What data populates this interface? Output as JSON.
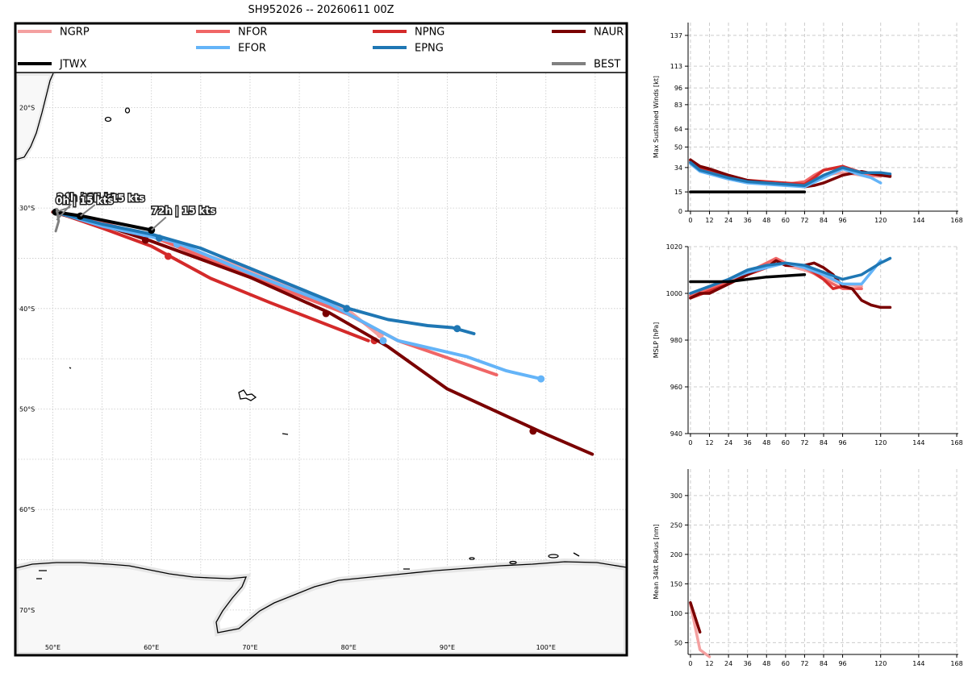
{
  "title": "SH952026 -- 20260611 00Z",
  "colors": {
    "NGRP": "#f4a0a0",
    "NFOR": "#f06666",
    "NPNG": "#d42a2a",
    "NAUR": "#7a0000",
    "EFOR": "#64b4f8",
    "EPNG": "#1f77b4",
    "JTWX": "#000000",
    "BEST": "#808080",
    "land": "#f8f8f8"
  },
  "legend": [
    {
      "key": "NGRP",
      "label": "NGRP"
    },
    {
      "key": "NFOR",
      "label": "NFOR"
    },
    {
      "key": "NPNG",
      "label": "NPNG"
    },
    {
      "key": "NAUR",
      "label": "NAUR"
    },
    {
      "key": "JTWX",
      "label": "JTWX"
    },
    {
      "key": "EFOR",
      "label": "EFOR"
    },
    {
      "key": "EPNG",
      "label": "EPNG"
    },
    {
      "key": "BEST",
      "label": "BEST"
    }
  ],
  "chart_data": [
    {
      "type": "line",
      "name": "track-map",
      "x_ticks": [
        "50°E",
        "60°E",
        "70°E",
        "80°E",
        "90°E",
        "100°E"
      ],
      "x_tick_values": [
        50,
        60,
        70,
        80,
        90,
        100
      ],
      "y_ticks": [
        "20°S",
        "30°S",
        "40°S",
        "50°S",
        "60°S",
        "70°S"
      ],
      "y_tick_values": [
        -20,
        -30,
        -40,
        -50,
        -60,
        -70
      ],
      "xlim": [
        46.2,
        108.2
      ],
      "ylim": [
        -74.5,
        -16.6
      ],
      "grid": true,
      "series": [
        {
          "key": "NGRP",
          "points": [
            [
              50.3,
              -30.4
            ],
            [
              53,
              -31
            ],
            [
              60,
              -32.8
            ],
            [
              70,
              -36.2
            ],
            [
              80,
              -40.2
            ],
            [
              83.5,
              -43
            ]
          ],
          "markers": [
            [
              83.2,
              -42.6
            ]
          ]
        },
        {
          "key": "NFOR",
          "points": [
            [
              50.3,
              -30.4
            ],
            [
              54,
              -31.2
            ],
            [
              60,
              -32.8
            ],
            [
              70,
              -36.8
            ],
            [
              80,
              -40.6
            ],
            [
              85,
              -43.2
            ],
            [
              95,
              -46.6
            ]
          ],
          "markers": []
        },
        {
          "key": "NPNG",
          "points": [
            [
              50.3,
              -30.4
            ],
            [
              55,
              -32
            ],
            [
              60,
              -33.8
            ],
            [
              66,
              -37
            ],
            [
              72,
              -39.4
            ],
            [
              82,
              -43.2
            ]
          ],
          "markers": [
            [
              61.7,
              -34.8
            ],
            [
              82.6,
              -43.2
            ]
          ]
        },
        {
          "key": "NAUR",
          "points": [
            [
              50,
              -30.4
            ],
            [
              56,
              -32
            ],
            [
              60,
              -33.3
            ],
            [
              70,
              -36.9
            ],
            [
              78,
              -40.4
            ],
            [
              84,
              -43.8
            ],
            [
              90,
              -48
            ],
            [
              100,
              -52.5
            ],
            [
              104.7,
              -54.5
            ]
          ],
          "markers": [
            [
              59.4,
              -33.2
            ],
            [
              77.7,
              -40.5
            ],
            [
              98.7,
              -52.2
            ]
          ]
        },
        {
          "key": "EFOR",
          "points": [
            [
              50.3,
              -30.4
            ],
            [
              55,
              -31.8
            ],
            [
              62.5,
              -33.4
            ],
            [
              70,
              -36.5
            ],
            [
              78,
              -39.5
            ],
            [
              85,
              -43.2
            ],
            [
              92,
              -44.8
            ],
            [
              96,
              -46.2
            ],
            [
              99.5,
              -47
            ]
          ],
          "markers": [
            [
              62.6,
              -33.6
            ],
            [
              83.5,
              -43.2
            ],
            [
              99.5,
              -47
            ]
          ]
        },
        {
          "key": "EPNG",
          "points": [
            [
              50.3,
              -30.4
            ],
            [
              55,
              -31.6
            ],
            [
              60,
              -32.6
            ],
            [
              65,
              -34
            ],
            [
              72,
              -36.8
            ],
            [
              80,
              -40
            ],
            [
              84,
              -41.1
            ],
            [
              88,
              -41.7
            ],
            [
              90.5,
              -41.9
            ],
            [
              92.7,
              -42.5
            ]
          ],
          "markers": [
            [
              60.8,
              -33
            ],
            [
              79.8,
              -40
            ],
            [
              91,
              -42
            ]
          ]
        },
        {
          "key": "JTWX",
          "points": [
            [
              50.3,
              -30.4
            ],
            [
              53,
              -30.8
            ],
            [
              60,
              -32.2
            ]
          ],
          "markers": [
            [
              50.3,
              -30.4
            ],
            [
              52.8,
              -30.8
            ],
            [
              60,
              -32.2
            ]
          ]
        },
        {
          "key": "BEST",
          "points": [
            [
              50.4,
              -30.1
            ],
            [
              50.6,
              -31.3
            ],
            [
              50.3,
              -32.3
            ]
          ],
          "markers": []
        }
      ],
      "annotations": [
        {
          "text": "24h | 15 kts",
          "x": 50.4,
          "y": -31.2
        },
        {
          "text": "48h | 15 kts",
          "x": 52.8,
          "y": -30.8
        },
        {
          "text": "0h | 15 kts",
          "x": 50.3,
          "y": -30.4
        },
        {
          "text": "72h | 15 kts",
          "x": 60,
          "y": -32.2
        }
      ]
    },
    {
      "type": "line",
      "name": "max-sustained-winds",
      "ylabel": "Max Sustained Winds [kt]",
      "x_ticks": [
        0,
        12,
        24,
        36,
        48,
        60,
        72,
        84,
        96,
        120,
        144,
        168
      ],
      "y_ticks": [
        0,
        15,
        34,
        50,
        64,
        83,
        96,
        113,
        137
      ],
      "xlim": [
        -1.5,
        169
      ],
      "ylim": [
        0,
        147
      ],
      "grid": true,
      "series": [
        {
          "key": "NGRP",
          "x": [
            0,
            6,
            12,
            24,
            36,
            48,
            60,
            72,
            78,
            84,
            96,
            108,
            120
          ],
          "values": [
            38,
            33,
            31,
            26,
            24,
            22,
            21,
            21,
            24,
            28,
            30,
            28,
            27
          ]
        },
        {
          "key": "NFOR",
          "x": [
            0,
            6,
            12,
            24,
            36,
            48,
            60,
            72,
            78,
            84,
            96,
            108,
            120
          ],
          "values": [
            39,
            33,
            31,
            27,
            23,
            22,
            21,
            23,
            28,
            32,
            35,
            28,
            28
          ]
        },
        {
          "key": "NPNG",
          "x": [
            0,
            6,
            12,
            24,
            36,
            48,
            60,
            72,
            78,
            84,
            96,
            108,
            120,
            126
          ],
          "values": [
            40,
            34,
            32,
            28,
            24,
            23,
            22,
            21,
            26,
            32,
            35,
            30,
            30,
            28
          ]
        },
        {
          "key": "NAUR",
          "x": [
            0,
            6,
            12,
            24,
            36,
            48,
            60,
            72,
            78,
            84,
            96,
            108,
            120,
            126
          ],
          "values": [
            40,
            35,
            33,
            28,
            24,
            22,
            21,
            19,
            20,
            22,
            28,
            31,
            28,
            27
          ]
        },
        {
          "key": "EFOR",
          "x": [
            0,
            6,
            12,
            24,
            36,
            48,
            60,
            72,
            84,
            96,
            108,
            114,
            120
          ],
          "values": [
            37,
            31,
            29,
            25,
            22,
            21,
            20,
            19,
            26,
            33,
            28,
            26,
            22
          ]
        },
        {
          "key": "EPNG",
          "x": [
            0,
            6,
            12,
            24,
            36,
            48,
            60,
            72,
            84,
            96,
            108,
            120,
            126
          ],
          "values": [
            38,
            32,
            30,
            26,
            23,
            22,
            21,
            20,
            28,
            34,
            30,
            30,
            29
          ]
        },
        {
          "key": "JTWX",
          "x": [
            0,
            72
          ],
          "values": [
            15,
            15
          ]
        }
      ]
    },
    {
      "type": "line",
      "name": "mslp",
      "ylabel": "MSLP [hPa]",
      "x_ticks": [
        0,
        12,
        24,
        36,
        48,
        60,
        72,
        84,
        96,
        120,
        144,
        168
      ],
      "y_ticks": [
        940,
        960,
        980,
        1000,
        1020
      ],
      "xlim": [
        -1.5,
        169
      ],
      "ylim": [
        940,
        1020
      ],
      "grid": true,
      "series": [
        {
          "key": "NGRP",
          "x": [
            0,
            12,
            24,
            36,
            48,
            54,
            60,
            72,
            84,
            96,
            108
          ],
          "values": [
            999,
            1002,
            1005,
            1009,
            1012,
            1014,
            1012,
            1010,
            1007,
            1004,
            1003
          ]
        },
        {
          "key": "NFOR",
          "x": [
            0,
            12,
            24,
            36,
            48,
            54,
            60,
            72,
            84,
            96,
            108
          ],
          "values": [
            999,
            1002,
            1005,
            1009,
            1013,
            1015,
            1013,
            1011,
            1006,
            1002,
            1002
          ]
        },
        {
          "key": "NPNG",
          "x": [
            0,
            12,
            24,
            36,
            48,
            54,
            60,
            72,
            84,
            90,
            96
          ],
          "values": [
            998,
            1001,
            1004,
            1008,
            1011,
            1014,
            1012,
            1012,
            1006,
            1002,
            1003
          ]
        },
        {
          "key": "NAUR",
          "x": [
            0,
            6,
            12,
            24,
            30,
            36,
            42,
            48,
            54,
            60,
            66,
            72,
            78,
            84,
            90,
            96,
            102,
            108,
            114,
            120,
            126
          ],
          "values": [
            998,
            1000,
            1000,
            1004,
            1006,
            1008,
            1010,
            1011,
            1014,
            1012,
            1012,
            1012,
            1013,
            1011,
            1008,
            1003,
            1002,
            997,
            995,
            994,
            994
          ]
        },
        {
          "key": "EFOR",
          "x": [
            0,
            12,
            24,
            36,
            48,
            60,
            72,
            84,
            96,
            108,
            114,
            120
          ],
          "values": [
            1000,
            1003,
            1006,
            1009,
            1011,
            1013,
            1011,
            1008,
            1004,
            1004,
            1009,
            1014
          ]
        },
        {
          "key": "EPNG",
          "x": [
            0,
            12,
            24,
            36,
            48,
            60,
            72,
            84,
            96,
            108,
            120,
            126
          ],
          "values": [
            1000,
            1003,
            1006,
            1010,
            1012,
            1013,
            1012,
            1009,
            1006,
            1008,
            1013,
            1015
          ]
        },
        {
          "key": "JTWX",
          "x": [
            0,
            24,
            48,
            72
          ],
          "values": [
            1005,
            1005,
            1007,
            1008
          ]
        }
      ]
    },
    {
      "type": "line",
      "name": "mean-34kt-radius",
      "ylabel": "Mean 34kt Radius [nm]",
      "x_ticks": [
        0,
        12,
        24,
        36,
        48,
        60,
        72,
        84,
        96,
        120,
        144,
        168
      ],
      "y_ticks": [
        50,
        100,
        150,
        200,
        250,
        300
      ],
      "xlim": [
        -1.5,
        169
      ],
      "ylim": [
        30,
        345
      ],
      "grid": true,
      "series": [
        {
          "key": "NGRP",
          "x": [
            0,
            6,
            12
          ],
          "values": [
            115,
            38,
            26
          ]
        },
        {
          "key": "NAUR",
          "x": [
            0,
            6
          ],
          "values": [
            118,
            68
          ]
        }
      ]
    }
  ]
}
